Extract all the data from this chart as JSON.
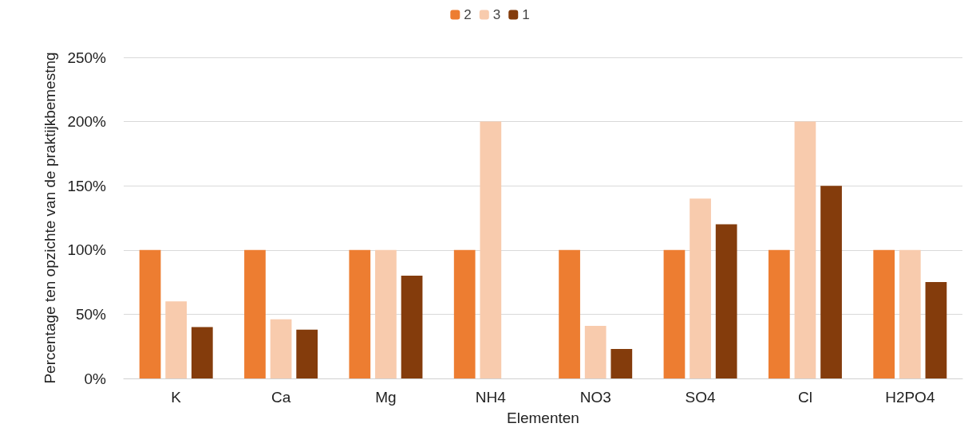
{
  "chart_data": {
    "type": "bar",
    "xlabel": "Elementen",
    "ylabel": "Percentage ten opzichte van de praktijkbemestng",
    "categories": [
      "K",
      "Ca",
      "Mg",
      "NH4",
      "NO3",
      "SO4",
      "Cl",
      "H2PO4"
    ],
    "series": [
      {
        "name": "2",
        "color": "#ed7d31",
        "values": [
          100,
          100,
          100,
          100,
          100,
          100,
          100,
          100
        ]
      },
      {
        "name": "3",
        "color": "#f8cbad",
        "values": [
          60,
          46,
          100,
          200,
          41,
          140,
          200,
          100
        ]
      },
      {
        "name": "1",
        "color": "#843c0c",
        "values": [
          40,
          38,
          80,
          null,
          23,
          120,
          150,
          75
        ]
      }
    ],
    "ylim": [
      0,
      250
    ],
    "yticks": [
      {
        "value": 0,
        "label": "0%"
      },
      {
        "value": 50,
        "label": "50%"
      },
      {
        "value": 100,
        "label": "100%"
      },
      {
        "value": 150,
        "label": "150%"
      },
      {
        "value": 200,
        "label": "200%"
      },
      {
        "value": 250,
        "label": "250%"
      }
    ],
    "grid": "y",
    "legend": "top"
  }
}
